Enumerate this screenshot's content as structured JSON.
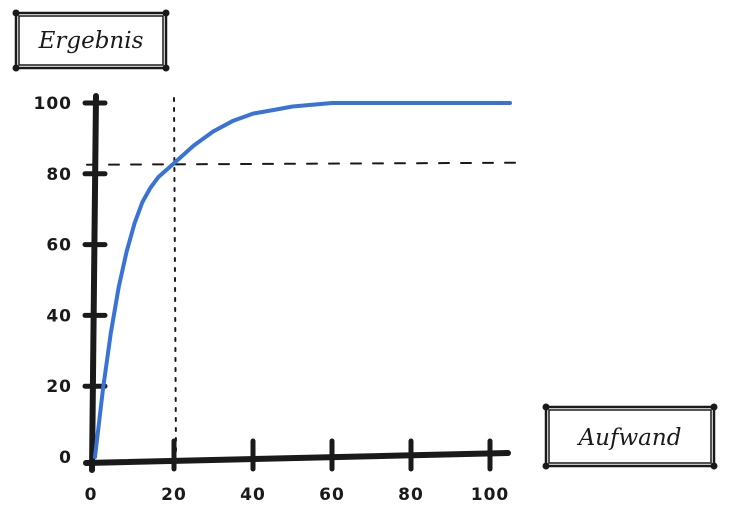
{
  "chart_data": {
    "type": "line",
    "xlabel": "Aufwand",
    "ylabel": "Ergebnis",
    "xlim": [
      0,
      100
    ],
    "ylim": [
      0,
      100
    ],
    "xticks": [
      "0",
      "20",
      "40",
      "60",
      "80",
      "100"
    ],
    "yticks": [
      "0",
      "20",
      "40",
      "60",
      "80",
      "100"
    ],
    "series": [
      {
        "color": "#3a73d6",
        "x": [
          0,
          2,
          4,
          6,
          8,
          10,
          12,
          14,
          16,
          18,
          20,
          25,
          30,
          35,
          40,
          45,
          50,
          55,
          60,
          70,
          80,
          90,
          100
        ],
        "y": [
          0,
          19,
          35,
          48,
          58,
          66,
          72,
          76,
          79,
          81,
          83,
          88,
          92,
          95,
          97,
          98,
          99,
          99.5,
          100,
          100,
          100,
          100,
          100
        ]
      }
    ],
    "reference_lines": [
      {
        "axis": "x",
        "value": 20,
        "style": "dotted"
      },
      {
        "axis": "y",
        "value": 82,
        "style": "dashed"
      }
    ],
    "grid": false,
    "legend": "none"
  }
}
